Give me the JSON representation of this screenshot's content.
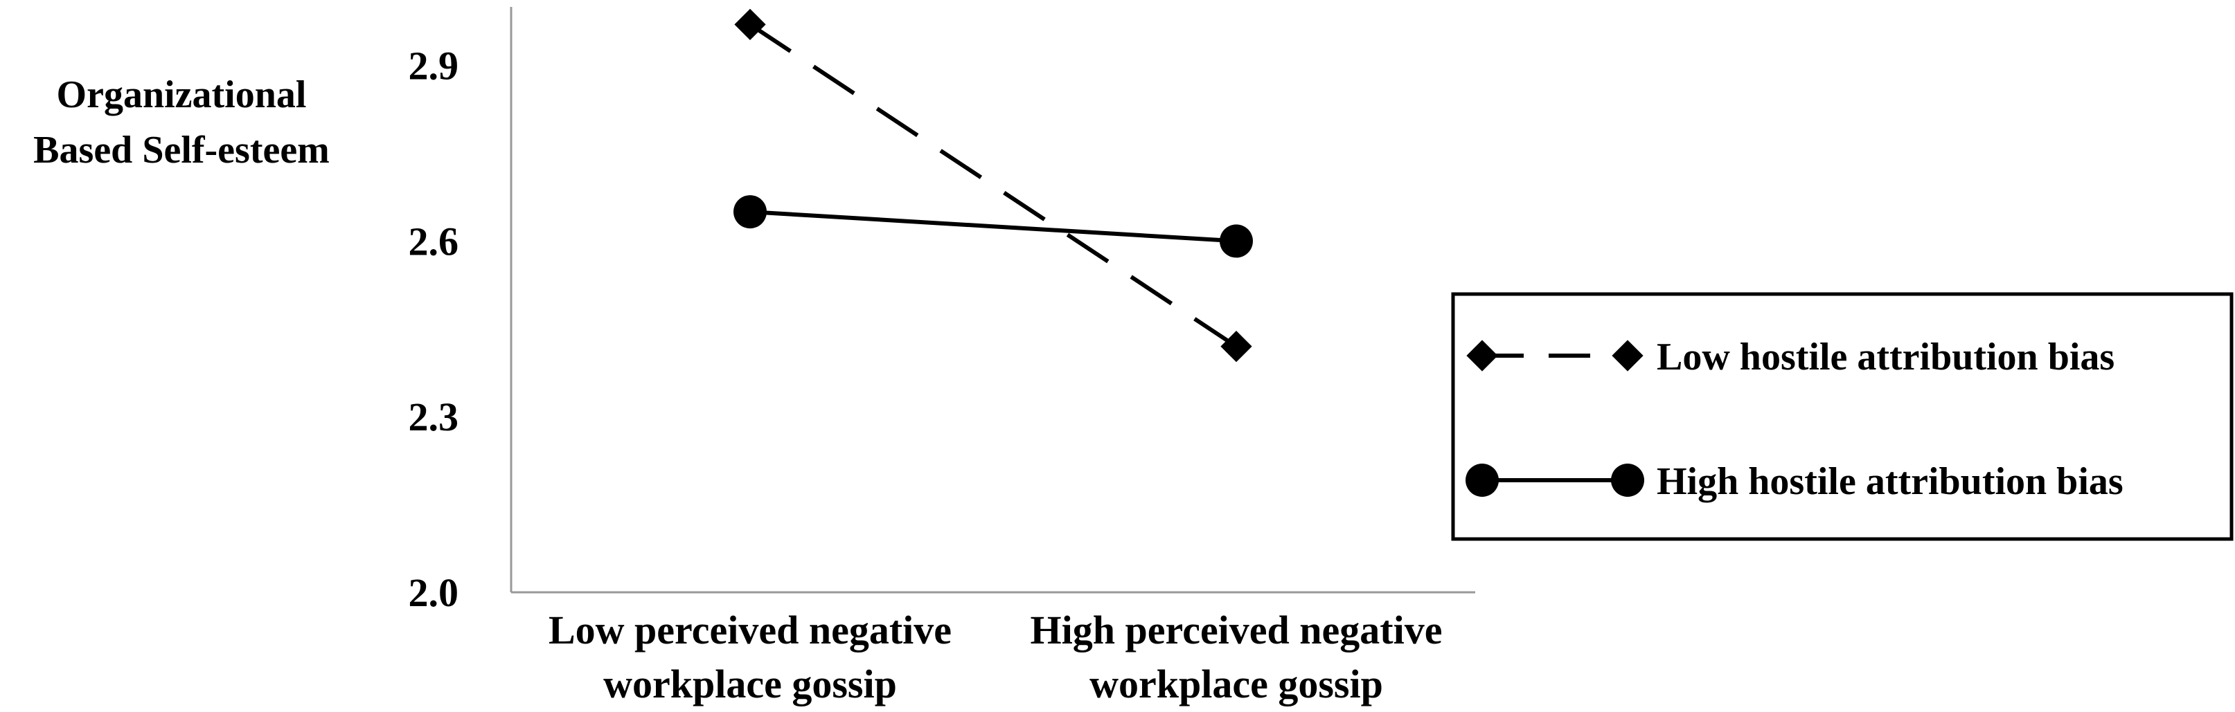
{
  "chart_data": {
    "type": "line",
    "title": "",
    "ylabel_lines": [
      "Organizational",
      "Based Self-esteem"
    ],
    "xlabel": "",
    "categories": [
      [
        "Low perceived negative",
        "workplace gossip"
      ],
      [
        "High perceived negative",
        "workplace gossip"
      ]
    ],
    "ylim": [
      2.0,
      3.0
    ],
    "yticks": [
      "2.0",
      "2.3",
      "2.6",
      "2.9"
    ],
    "grid": false,
    "legend_position": "right",
    "series": [
      {
        "name": "Low hostile attribution bias",
        "values": [
          2.97,
          2.42
        ],
        "line_style": "dashed",
        "marker": "diamond",
        "color": "#000000"
      },
      {
        "name": "High hostile attribution bias",
        "values": [
          2.65,
          2.6
        ],
        "line_style": "solid",
        "marker": "circle",
        "color": "#000000"
      }
    ]
  }
}
